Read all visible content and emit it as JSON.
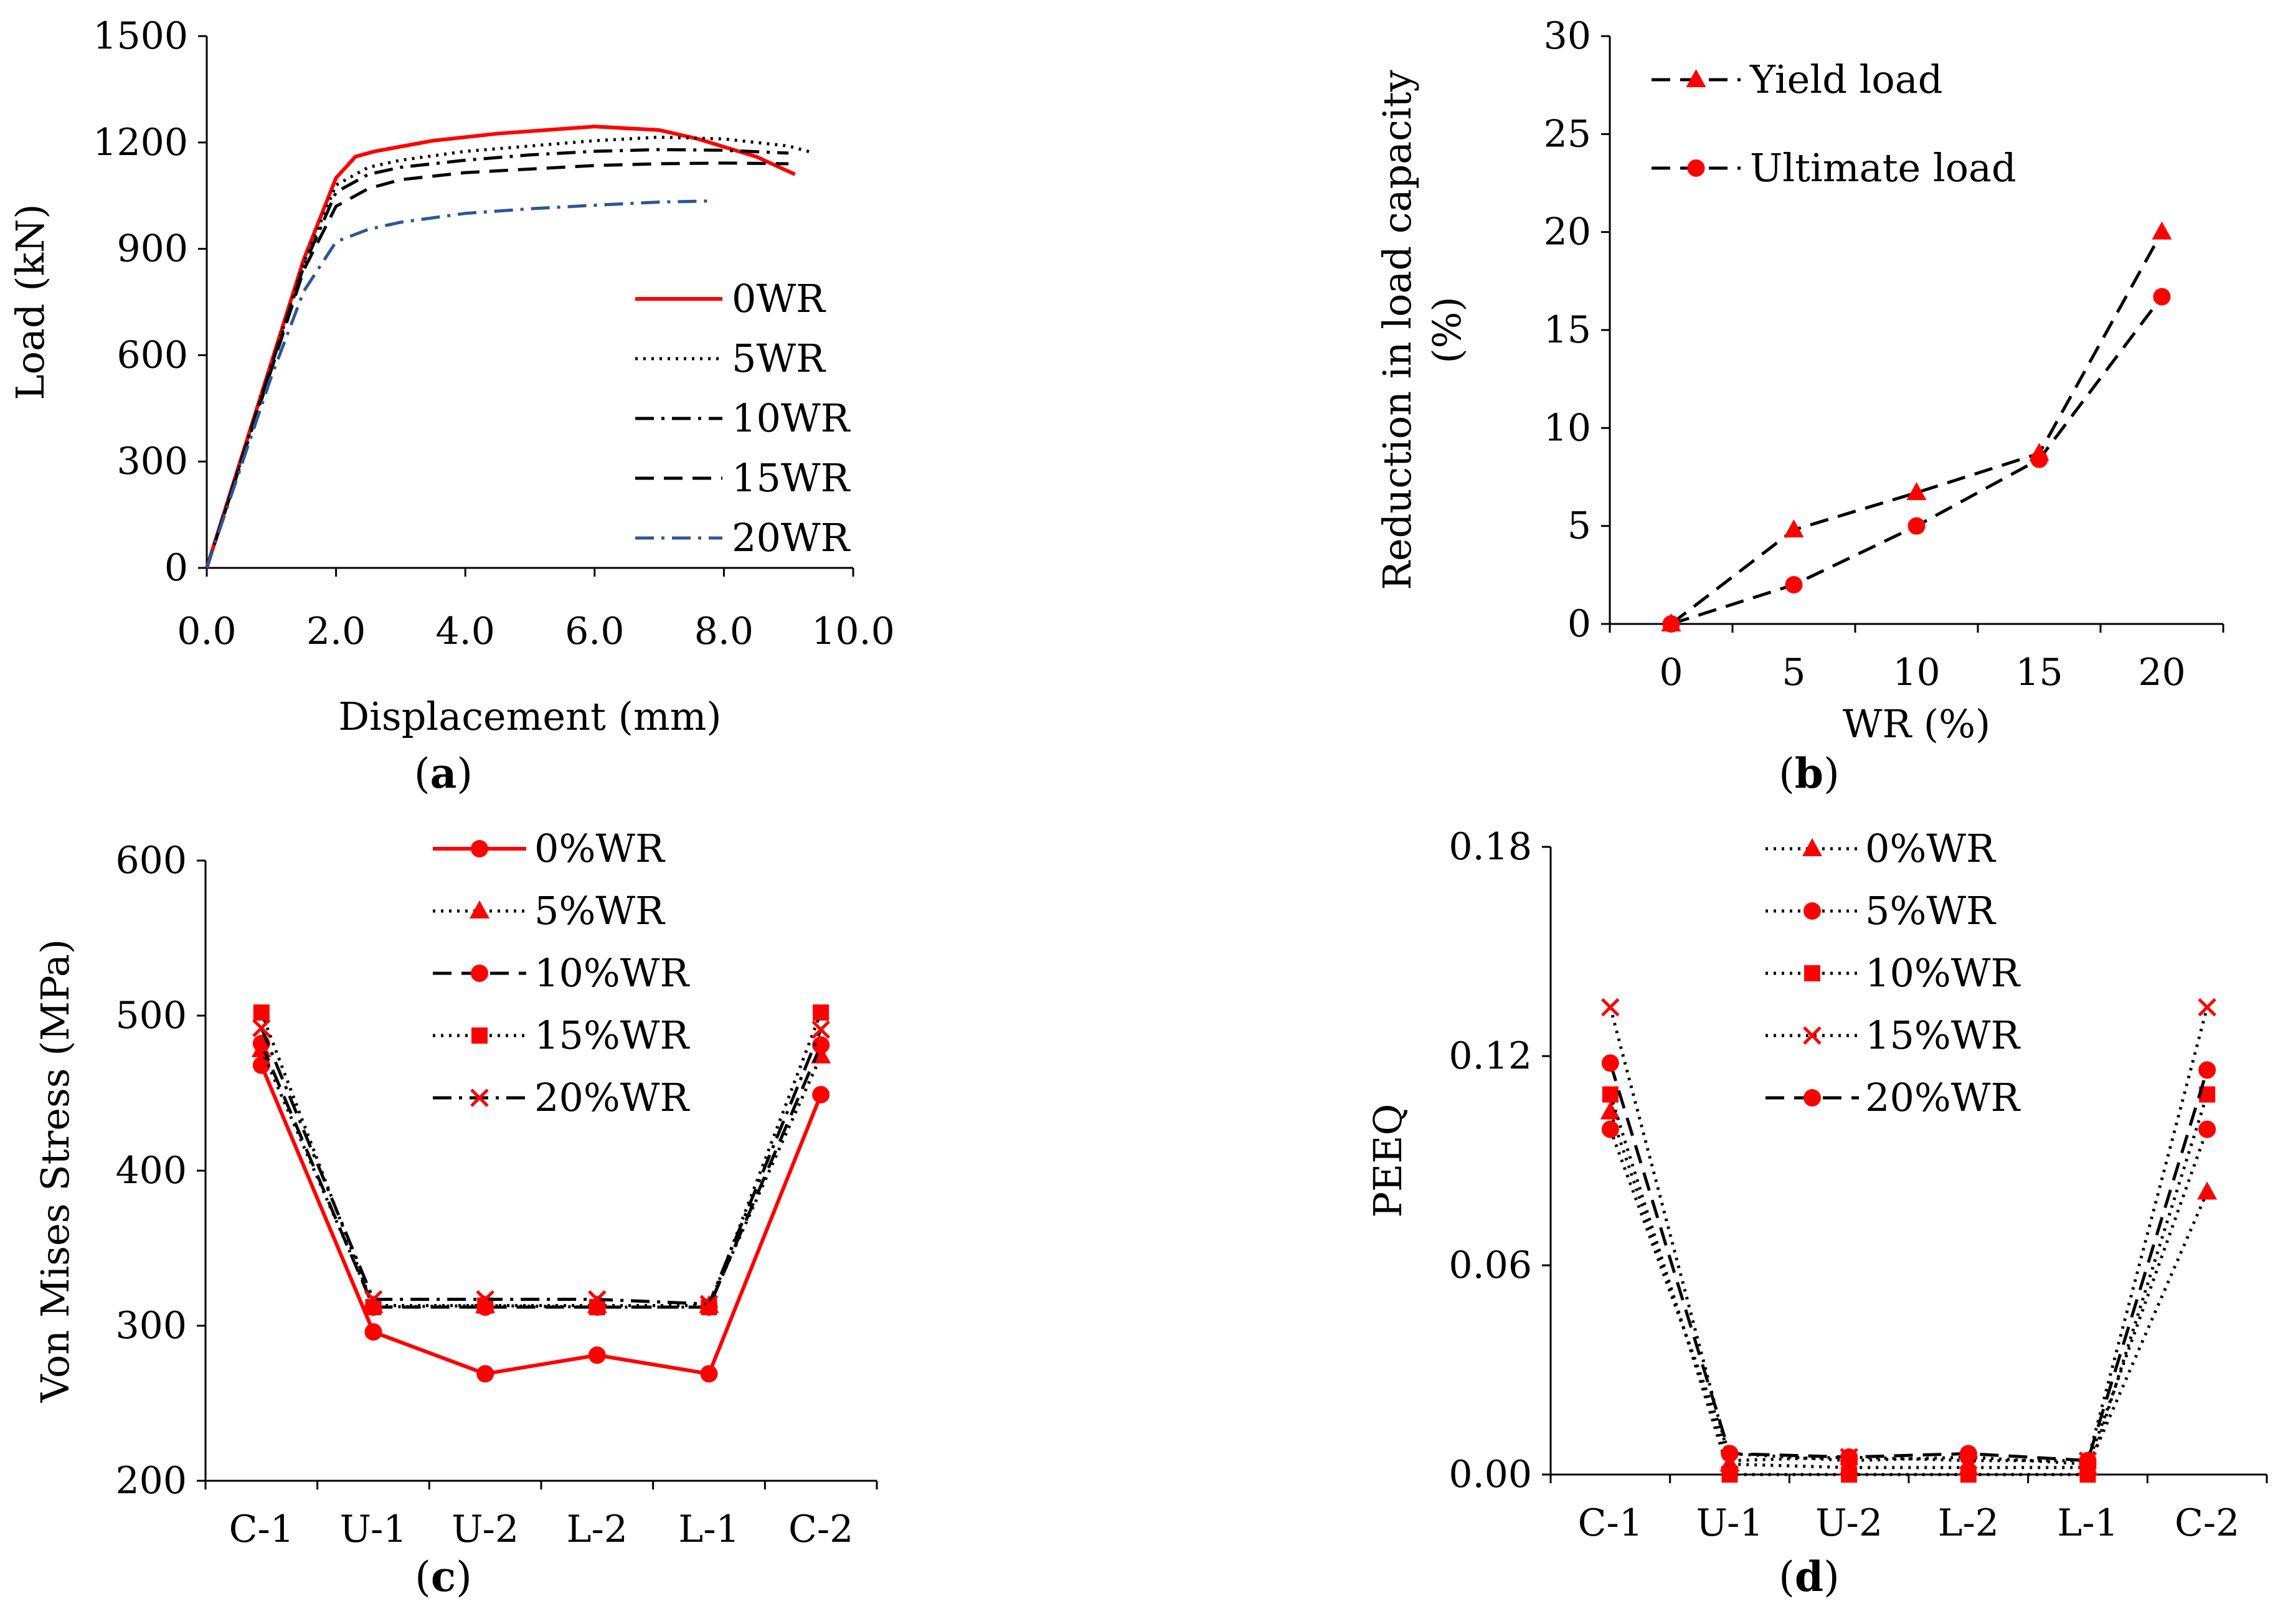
{
  "chart_data": [
    {
      "id": "a",
      "type": "line",
      "caption_letter": "a",
      "xlabel": "Displacement (mm)",
      "ylabel": "Load (kN)",
      "xlim": [
        0,
        10
      ],
      "ylim": [
        0,
        1500
      ],
      "xticks": [
        "0.0",
        "2.0",
        "4.0",
        "6.0",
        "8.0",
        "10.0"
      ],
      "yticks": [
        "0",
        "300",
        "600",
        "900",
        "1200",
        "1500"
      ],
      "legend_position": "lower-right",
      "series": [
        {
          "name": "0WR",
          "color": "#ff0000",
          "dash": "solid",
          "x": [
            0,
            0.5,
            1.0,
            1.5,
            2.0,
            2.3,
            2.6,
            3.5,
            4.5,
            6.0,
            7.0,
            7.6,
            8.5,
            9.1
          ],
          "y": [
            0,
            290,
            580,
            870,
            1100,
            1160,
            1175,
            1205,
            1225,
            1245,
            1235,
            1210,
            1160,
            1110
          ]
        },
        {
          "name": "5WR",
          "color": "#000000",
          "dash": "dot",
          "x": [
            0,
            0.5,
            1.0,
            1.5,
            2.0,
            2.5,
            3.0,
            4.0,
            5.0,
            6.0,
            7.0,
            8.0,
            9.0,
            9.4
          ],
          "y": [
            0,
            285,
            570,
            860,
            1080,
            1130,
            1150,
            1175,
            1190,
            1205,
            1215,
            1210,
            1190,
            1170
          ]
        },
        {
          "name": "10WR",
          "color": "#000000",
          "dash": "dashdot",
          "x": [
            0,
            0.5,
            1.0,
            1.5,
            2.0,
            2.5,
            3.0,
            4.0,
            5.0,
            6.0,
            7.0,
            8.0,
            9.0
          ],
          "y": [
            0,
            285,
            570,
            850,
            1060,
            1110,
            1130,
            1150,
            1165,
            1175,
            1180,
            1178,
            1170
          ]
        },
        {
          "name": "15WR",
          "color": "#000000",
          "dash": "dash",
          "x": [
            0,
            0.5,
            1.0,
            1.5,
            2.0,
            2.5,
            3.0,
            4.0,
            5.0,
            6.0,
            7.0,
            8.0,
            9.0
          ],
          "y": [
            0,
            280,
            560,
            840,
            1020,
            1070,
            1095,
            1115,
            1125,
            1135,
            1140,
            1142,
            1140
          ]
        },
        {
          "name": "20WR",
          "color": "#2f5597",
          "dash": "dashdot",
          "x": [
            0,
            0.5,
            1.0,
            1.5,
            2.0,
            2.5,
            3.0,
            4.0,
            5.0,
            6.0,
            7.0,
            7.8
          ],
          "y": [
            0,
            270,
            540,
            780,
            920,
            955,
            975,
            1000,
            1013,
            1023,
            1032,
            1035
          ]
        }
      ]
    },
    {
      "id": "b",
      "type": "line",
      "caption_letter": "b",
      "xlabel": "WR (%)",
      "ylabel_line1": "Reduction in load capacity",
      "ylabel_line2": "(%)",
      "categories": [
        "0",
        "5",
        "10",
        "15",
        "20"
      ],
      "ylim": [
        0,
        30
      ],
      "yticks": [
        "0",
        "5",
        "10",
        "15",
        "20",
        "25",
        "30"
      ],
      "legend_position": "top-left",
      "series": [
        {
          "name": "Yield load",
          "marker": "triangle",
          "color": "#ff0000",
          "line_color": "#000000",
          "dash": "dash",
          "values": [
            0,
            4.8,
            6.7,
            8.7,
            20.0
          ]
        },
        {
          "name": "Ultimate load",
          "marker": "circle",
          "color": "#ff0000",
          "line_color": "#000000",
          "dash": "dash",
          "values": [
            0,
            2.0,
            5.0,
            8.4,
            16.7
          ]
        }
      ]
    },
    {
      "id": "c",
      "type": "line",
      "caption_letter": "c",
      "xlabel": "",
      "ylabel": "Von Mises Stress (MPa)",
      "categories": [
        "C-1",
        "U-1",
        "U-2",
        "L-2",
        "L-1",
        "C-2"
      ],
      "ylim": [
        200,
        600
      ],
      "yticks": [
        "200",
        "300",
        "400",
        "500",
        "600"
      ],
      "legend_position": "top-center",
      "series": [
        {
          "name": "0%WR",
          "marker": "circle",
          "color": "#ff0000",
          "line_color": "#ff0000",
          "dash": "solid",
          "values": [
            468,
            296,
            269,
            281,
            269,
            449
          ]
        },
        {
          "name": "5%WR",
          "marker": "triangle",
          "color": "#ff0000",
          "line_color": "#000000",
          "dash": "dot",
          "values": [
            478,
            313,
            313,
            313,
            313,
            474
          ]
        },
        {
          "name": "10%WR",
          "marker": "circle",
          "color": "#ff0000",
          "line_color": "#000000",
          "dash": "dash",
          "values": [
            482,
            312,
            312,
            312,
            312,
            481
          ]
        },
        {
          "name": "15%WR",
          "marker": "square",
          "color": "#ff0000",
          "line_color": "#000000",
          "dash": "dot",
          "values": [
            502,
            312,
            313,
            312,
            312,
            502
          ]
        },
        {
          "name": "20%WR",
          "marker": "x",
          "color": "#ff0000",
          "line_color": "#000000",
          "dash": "dashdot",
          "values": [
            492,
            317,
            317,
            317,
            314,
            491
          ]
        }
      ]
    },
    {
      "id": "d",
      "type": "line",
      "caption_letter": "d",
      "xlabel": "",
      "ylabel": "PEEQ",
      "categories": [
        "C-1",
        "U-1",
        "U-2",
        "L-2",
        "L-1",
        "C-2"
      ],
      "ylim": [
        0,
        0.18
      ],
      "yticks": [
        "0.00",
        "0.06",
        "0.12",
        "0.18"
      ],
      "legend_position": "top-center",
      "series": [
        {
          "name": "0%WR",
          "marker": "triangle",
          "color": "#ff0000",
          "line_color": "#000000",
          "dash": "dot",
          "values": [
            0.104,
            0.003,
            0.002,
            0.002,
            0.002,
            0.081
          ]
        },
        {
          "name": "5%WR",
          "marker": "circle",
          "color": "#ff0000",
          "line_color": "#000000",
          "dash": "dot",
          "values": [
            0.099,
            0.006,
            0.004,
            0.005,
            0.003,
            0.099
          ]
        },
        {
          "name": "10%WR",
          "marker": "square",
          "color": "#ff0000",
          "line_color": "#000000",
          "dash": "dot",
          "values": [
            0.109,
            0.0,
            0.0,
            0.0,
            0.0,
            0.109
          ]
        },
        {
          "name": "15%WR",
          "marker": "x",
          "color": "#ff0000",
          "line_color": "#000000",
          "dash": "dot",
          "values": [
            0.134,
            0.004,
            0.005,
            0.004,
            0.004,
            0.134
          ]
        },
        {
          "name": "20%WR",
          "marker": "circle",
          "color": "#ff0000",
          "line_color": "#000000",
          "dash": "dash",
          "values": [
            0.118,
            0.006,
            0.005,
            0.006,
            0.004,
            0.116
          ]
        }
      ]
    }
  ]
}
